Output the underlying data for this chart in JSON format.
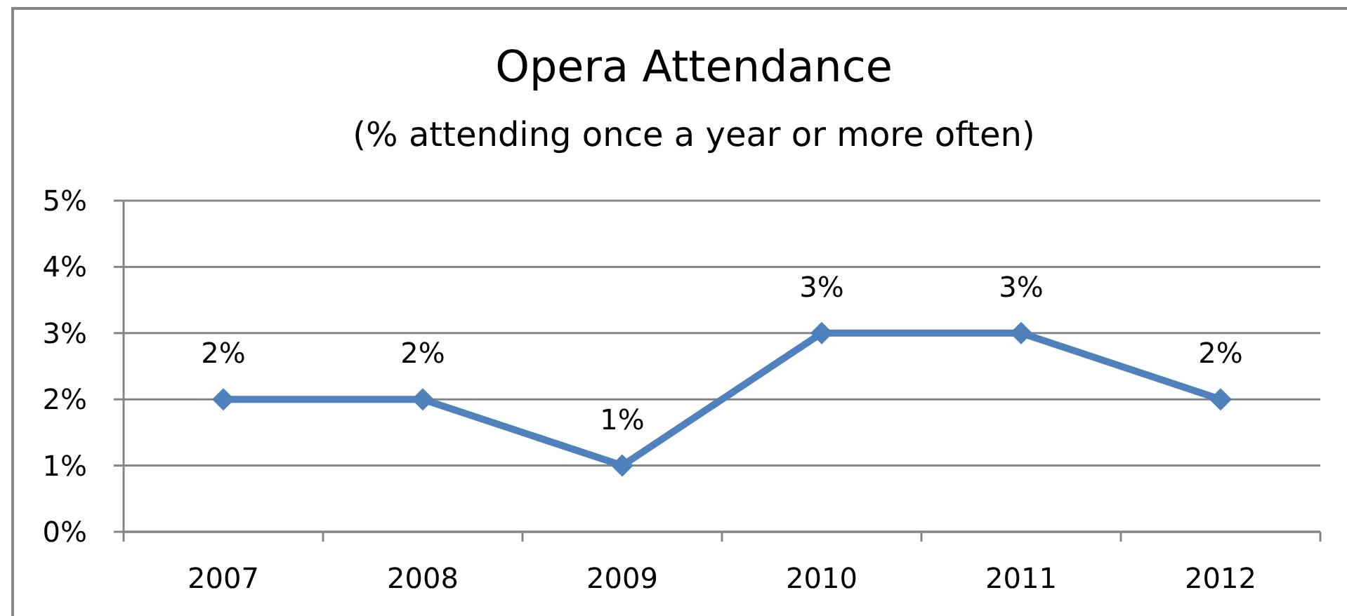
{
  "chart_data": {
    "type": "line",
    "title": "Opera Attendance",
    "subtitle": "(% attending once a year or more often)",
    "categories": [
      "2007",
      "2008",
      "2009",
      "2010",
      "2011",
      "2012"
    ],
    "series": [
      {
        "color": "#4f81bd",
        "values": [
          2,
          2,
          1,
          3,
          3,
          2
        ],
        "value_labels": [
          "2%",
          "2%",
          "1%",
          "3%",
          "3%",
          "2%"
        ]
      }
    ],
    "ylim": [
      0,
      5
    ],
    "yticks": [
      {
        "value": 0,
        "label": "0%"
      },
      {
        "value": 1,
        "label": "1%"
      },
      {
        "value": 2,
        "label": "2%"
      },
      {
        "value": 3,
        "label": "3%"
      },
      {
        "value": 4,
        "label": "4%"
      },
      {
        "value": 5,
        "label": "5%"
      }
    ],
    "grid": "y",
    "marker": "diamond",
    "line_style": "solid"
  }
}
